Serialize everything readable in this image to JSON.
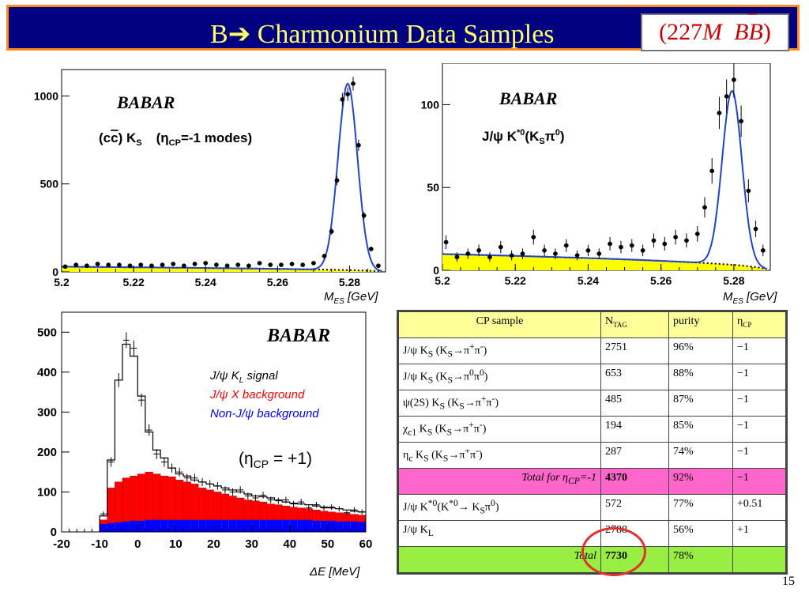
{
  "slide": {
    "title_parts": [
      "B",
      "➔",
      " Charmonium Data Samples"
    ],
    "badge": {
      "paren_open": "(",
      "number": "227",
      "unit": "M",
      "bb": "BB",
      "bar": "‾",
      "paren_close": ")"
    },
    "page_number": "15"
  },
  "colors": {
    "title_bg": "#000080",
    "title_text": "#ffff66",
    "title_border": "#ff8c1a",
    "peak_fill": "#ffff00",
    "fit_line": "#2244cc",
    "jpsi_x_bkg": "#ff0000",
    "non_jpsi_bkg": "#0000ff",
    "highlight_pink": "#ff66cc",
    "highlight_green": "#99ee44",
    "circle": "#e03030"
  },
  "chart_data": [
    {
      "type": "scatter",
      "logo": "BABAR",
      "label_parts": [
        "(c",
        "c",
        ") K",
        "S",
        "(η",
        "CP",
        "=-1 modes)"
      ],
      "xlabel_parts": [
        "M",
        "ES",
        " [GeV]"
      ],
      "xlim": [
        5.2,
        5.29
      ],
      "ylim": [
        0,
        1150
      ],
      "x_ticks": [
        "5.2",
        "5.22",
        "5.24",
        "5.26",
        "5.28"
      ],
      "y_ticks": [
        "0",
        "500",
        "1000"
      ],
      "y_tick_values": [
        0,
        500,
        1000
      ],
      "series": [
        {
          "x": [
            5.201,
            5.204,
            5.207,
            5.21,
            5.213,
            5.216,
            5.219,
            5.222,
            5.225,
            5.228,
            5.231,
            5.234,
            5.237,
            5.24,
            5.243,
            5.246,
            5.249,
            5.252,
            5.255,
            5.258,
            5.261,
            5.264,
            5.267,
            5.27,
            5.273,
            5.275,
            5.2765,
            5.278,
            5.2795,
            5.281,
            5.2825,
            5.284,
            5.286,
            5.288
          ],
          "y": [
            30,
            40,
            35,
            45,
            40,
            40,
            35,
            40,
            35,
            40,
            45,
            35,
            45,
            50,
            40,
            35,
            40,
            35,
            50,
            40,
            40,
            45,
            40,
            50,
            90,
            230,
            520,
            980,
            1010,
            1070,
            720,
            320,
            130,
            35
          ]
        }
      ],
      "background_curve": {
        "type": "argus",
        "level": 30
      },
      "fit_peak": {
        "mean": 5.2795,
        "sigma": 0.0027,
        "height": 1060
      }
    },
    {
      "type": "scatter",
      "logo": "BABAR",
      "label_parts": [
        "J/ψ K",
        "*0",
        "(K",
        "S",
        "π",
        "0",
        ")"
      ],
      "xlabel_parts": [
        "M",
        "ES",
        " [GeV]"
      ],
      "xlim": [
        5.2,
        5.29
      ],
      "ylim": [
        0,
        125
      ],
      "x_ticks": [
        "5.2",
        "5.22",
        "5.24",
        "5.26",
        "5.28"
      ],
      "y_ticks": [
        "0",
        "50",
        "100"
      ],
      "y_tick_values": [
        0,
        50,
        100
      ],
      "series": [
        {
          "x": [
            5.201,
            5.204,
            5.207,
            5.21,
            5.213,
            5.216,
            5.219,
            5.222,
            5.225,
            5.228,
            5.231,
            5.234,
            5.237,
            5.24,
            5.243,
            5.246,
            5.249,
            5.252,
            5.255,
            5.258,
            5.261,
            5.264,
            5.267,
            5.27,
            5.272,
            5.274,
            5.276,
            5.278,
            5.28,
            5.282,
            5.284,
            5.286,
            5.288
          ],
          "y": [
            17,
            8,
            10,
            12,
            8,
            14,
            9,
            10,
            20,
            12,
            10,
            15,
            9,
            12,
            10,
            16,
            14,
            15,
            12,
            18,
            16,
            20,
            18,
            22,
            38,
            60,
            95,
            105,
            115,
            90,
            48,
            25,
            12
          ]
        }
      ],
      "background_curve": {
        "type": "argus",
        "level": 10
      },
      "fit_peak": {
        "mean": 5.2795,
        "sigma": 0.0027,
        "height": 105
      }
    },
    {
      "type": "bar",
      "logo": "BABAR",
      "xlabel_parts": [
        "ΔE [MeV]"
      ],
      "xlim": [
        -20,
        60
      ],
      "ylim": [
        0,
        550
      ],
      "x_ticks": [
        "-20",
        "-10",
        "0",
        "10",
        "20",
        "30",
        "40",
        "50",
        "60"
      ],
      "x_tick_values": [
        -20,
        -10,
        0,
        10,
        20,
        30,
        40,
        50,
        60
      ],
      "y_ticks": [
        "0",
        "100",
        "200",
        "300",
        "400",
        "500"
      ],
      "y_tick_values": [
        0,
        100,
        200,
        300,
        400,
        500
      ],
      "legend_items": [
        {
          "parts": [
            "J/ψ K",
            "L",
            " signal"
          ],
          "color": "#000000"
        },
        {
          "parts": [
            "J/ψ X background"
          ],
          "color": "#ff0000"
        },
        {
          "parts": [
            "Non-J/ψ background"
          ],
          "color": "#0000ff"
        }
      ],
      "annotation_parts": [
        "(η",
        "CP",
        " = +1)"
      ],
      "bin_edges": [
        -10,
        -8,
        -6,
        -4,
        -2,
        0,
        2,
        4,
        6,
        8,
        10,
        12,
        14,
        16,
        18,
        20,
        22,
        24,
        26,
        28,
        30,
        32,
        34,
        36,
        38,
        40,
        42,
        44,
        46,
        48,
        50,
        52,
        54,
        56,
        58,
        60
      ],
      "total": [
        40,
        180,
        380,
        470,
        440,
        340,
        250,
        205,
        185,
        160,
        145,
        140,
        130,
        125,
        120,
        115,
        110,
        105,
        100,
        95,
        90,
        88,
        85,
        80,
        75,
        72,
        70,
        68,
        65,
        62,
        60,
        58,
        55,
        52,
        50
      ],
      "jpsi_x_background": [
        30,
        110,
        125,
        135,
        140,
        145,
        150,
        145,
        140,
        138,
        130,
        125,
        120,
        110,
        105,
        100,
        95,
        90,
        85,
        80,
        78,
        75,
        70,
        68,
        65,
        62,
        60,
        58,
        55,
        52,
        50,
        48,
        46,
        44,
        42
      ],
      "non_jpsi_background": [
        20,
        22,
        24,
        26,
        28,
        28,
        30,
        30,
        30,
        30,
        30,
        30,
        30,
        30,
        30,
        30,
        30,
        30,
        30,
        30,
        30,
        30,
        30,
        30,
        30,
        30,
        30,
        30,
        28,
        28,
        28,
        26,
        26,
        26,
        25
      ],
      "data_points": {
        "x": [
          -9,
          -7,
          -5,
          -3,
          -1,
          1,
          3,
          5,
          7,
          9,
          11,
          13,
          15,
          17,
          19,
          21,
          23,
          25,
          27,
          29,
          31,
          33,
          35,
          37,
          39,
          41,
          43,
          45,
          47,
          49,
          51,
          53,
          55,
          57,
          59
        ],
        "y": [
          45,
          175,
          380,
          480,
          460,
          330,
          255,
          195,
          175,
          160,
          150,
          135,
          135,
          125,
          120,
          115,
          105,
          100,
          105,
          90,
          85,
          92,
          80,
          78,
          80,
          70,
          75,
          60,
          68,
          60,
          62,
          58,
          48,
          55,
          50
        ]
      }
    }
  ],
  "table": {
    "header": {
      "c0": "CP sample",
      "c1": {
        "main": "N",
        "sub": "TAG"
      },
      "c2": "purity",
      "c3": {
        "main": "η",
        "sub": "CP"
      }
    },
    "rows": [
      {
        "sample": [
          "J/ψ K",
          "S",
          " (K",
          "S",
          "→π",
          "+",
          "π",
          "-",
          ")"
        ],
        "ntag": "2751",
        "purity": "96%",
        "eta": "−1"
      },
      {
        "sample": [
          "J/ψ K",
          "S",
          " (K",
          "S",
          "→π",
          "0",
          "π",
          "0",
          ")"
        ],
        "ntag": "653",
        "purity": "88%",
        "eta": "−1"
      },
      {
        "sample": [
          "ψ(2S) K",
          "S",
          " (K",
          "S",
          "→π",
          "+",
          "π",
          "-",
          ")"
        ],
        "ntag": "485",
        "purity": "87%",
        "eta": "−1"
      },
      {
        "sample": [
          "χ",
          "c1",
          " K",
          "S",
          " (K",
          "S",
          "→π",
          "+",
          "π",
          "-",
          ")"
        ],
        "ntag": "194",
        "purity": "85%",
        "eta": "−1"
      },
      {
        "sample": [
          "η",
          "c",
          " K",
          "S",
          " (K",
          "S",
          "→π",
          "+",
          "π",
          "-",
          ")"
        ],
        "ntag": "287",
        "purity": "74%",
        "eta": "−1"
      }
    ],
    "total_cp_odd": {
      "label": [
        "Total for η",
        "CP",
        "=-1"
      ],
      "ntag": "4370",
      "purity": "92%",
      "eta": "−1"
    },
    "rows2": [
      {
        "sample": [
          "J/ψ K",
          "*0",
          "(K",
          "*0",
          "→ K",
          "S",
          "π",
          "0",
          ")"
        ],
        "ntag": "572",
        "purity": "77%",
        "eta": "+0.51"
      },
      {
        "sample": [
          "J/ψ K",
          "L"
        ],
        "ntag": "2788",
        "purity": "56%",
        "eta": "+1"
      }
    ],
    "total": {
      "label": "Total",
      "ntag": "7730",
      "purity": "78%",
      "eta": ""
    }
  }
}
